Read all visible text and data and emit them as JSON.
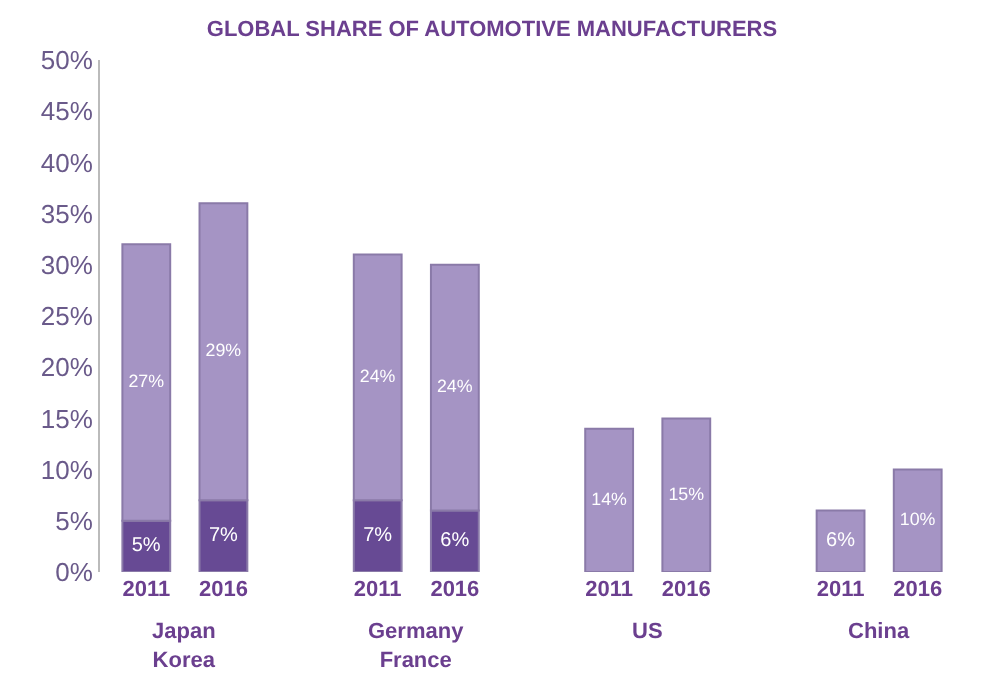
{
  "chart_data": {
    "type": "bar",
    "title": "GLOBAL SHARE OF AUTOMOTIVE MANUFACTURERS",
    "categories": [
      "2011",
      "2016",
      "2011",
      "2016",
      "2011",
      "2016",
      "2011",
      "2016"
    ],
    "stacked": true,
    "series": [
      {
        "color": "#674a94",
        "values": [
          5,
          7,
          7,
          6,
          null,
          null,
          null,
          null
        ],
        "value_labels": [
          "5%",
          "7%",
          "7%",
          "6%",
          null,
          null,
          null,
          null
        ]
      },
      {
        "color": "#a594c4",
        "values": [
          27,
          29,
          24,
          24,
          14,
          15,
          6,
          10
        ],
        "value_labels": [
          "27%",
          "29%",
          "24%",
          "24%",
          "14%",
          "15%",
          "6%",
          "10%"
        ]
      }
    ],
    "annotations": [
      "Japan\nKorea",
      "Germany\nFrance",
      "US",
      "China"
    ],
    "ylim": [
      0,
      50
    ],
    "yticks": [
      {
        "value": 0,
        "label": "0%"
      },
      {
        "value": 5,
        "label": "5%"
      },
      {
        "value": 10,
        "label": "10%"
      },
      {
        "value": 15,
        "label": "15%"
      },
      {
        "value": 20,
        "label": "20%"
      },
      {
        "value": 25,
        "label": "25%"
      },
      {
        "value": 30,
        "label": "30%"
      },
      {
        "value": 35,
        "label": "35%"
      },
      {
        "value": 40,
        "label": "40%"
      },
      {
        "value": 45,
        "label": "45%"
      },
      {
        "value": 50,
        "label": "50%"
      }
    ],
    "tick_labels": "xy"
  }
}
